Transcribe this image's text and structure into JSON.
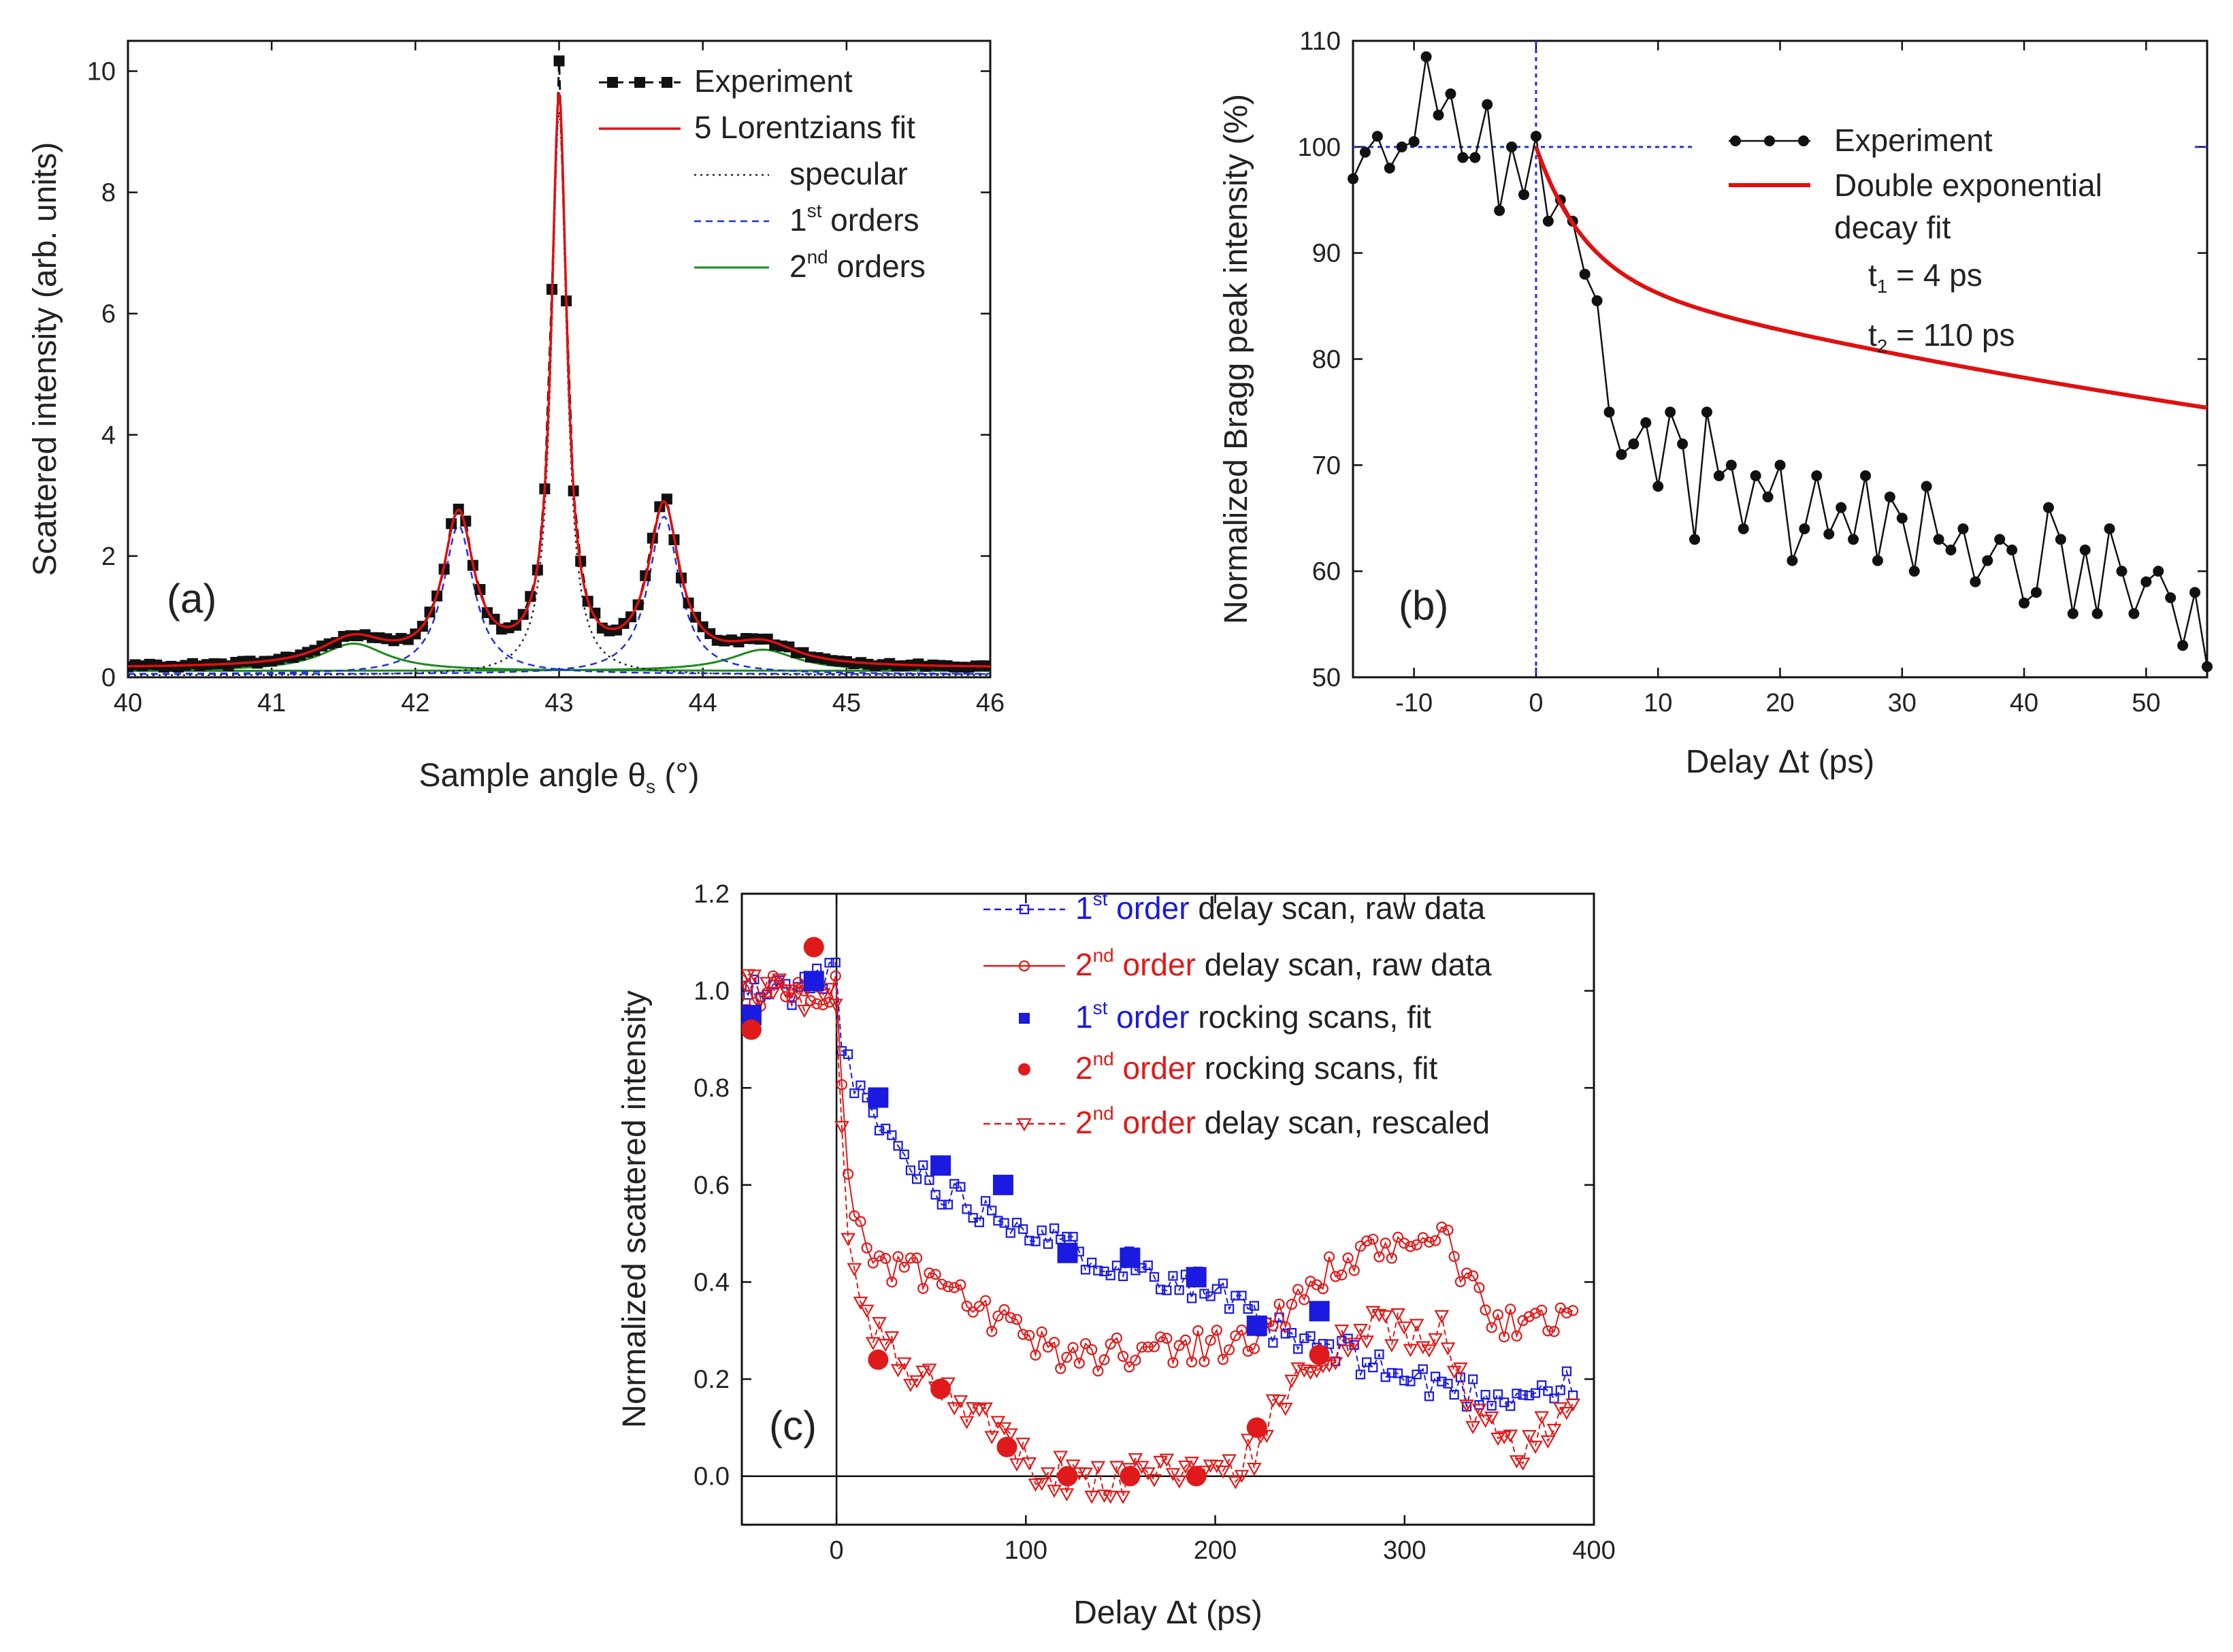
{
  "chart_data": [
    {
      "panel": "(a)",
      "type": "line",
      "xlabel": "Sample angle θ",
      "xlabel_sub": "s",
      "xlabel_unit": " (°)",
      "ylabel": "Scattered intensity (arb. units)",
      "xlim": [
        40,
        46
      ],
      "ylim": [
        0,
        10.5
      ],
      "xticks": [
        40,
        41,
        42,
        43,
        44,
        45,
        46
      ],
      "yticks": [
        0,
        2,
        4,
        6,
        8,
        10
      ],
      "baseline": 0.15,
      "components": {
        "specular": [
          {
            "x0": 43.0,
            "amp": 9.3,
            "width": 0.065
          }
        ],
        "first_orders": [
          {
            "x0": 42.3,
            "amp": 2.45,
            "width": 0.13
          },
          {
            "x0": 43.73,
            "amp": 2.6,
            "width": 0.13
          }
        ],
        "second_orders": [
          {
            "x0": 41.57,
            "amp": 0.45,
            "width": 0.28
          },
          {
            "x0": 44.42,
            "amp": 0.35,
            "width": 0.28
          }
        ]
      },
      "legend": [
        {
          "label": "Experiment",
          "style": "black-squares-dashed"
        },
        {
          "label": "5 Lorentzians fit",
          "style": "red-solid"
        },
        {
          "label": "specular",
          "style": "black-dotted"
        },
        {
          "label": "1",
          "sup": "st",
          "rest": " orders",
          "style": "blue-dashed"
        },
        {
          "label": "2",
          "sup": "nd",
          "rest": " orders",
          "style": "green-solid"
        }
      ]
    },
    {
      "panel": "(b)",
      "type": "line",
      "xlabel": "Delay Δt (ps)",
      "ylabel": "Normalized Bragg peak intensity (%)",
      "xlim": [
        -15,
        55
      ],
      "ylim": [
        50,
        110
      ],
      "xticks": [
        -10,
        0,
        10,
        20,
        30,
        40,
        50
      ],
      "yticks": [
        50,
        60,
        70,
        80,
        90,
        100,
        110
      ],
      "reference_lines": {
        "x": 0,
        "y": 100
      },
      "fit": {
        "type": "double-exponential",
        "t1_ps": 4,
        "t2_ps": 110,
        "a1": 12,
        "a2": 32
      },
      "experiment": {
        "x": [
          -15,
          -14,
          -13,
          -12,
          -11,
          -10,
          -9,
          -8,
          -7,
          -6,
          -5,
          -4,
          -3,
          -2,
          -1,
          0,
          1,
          2,
          3,
          4,
          5,
          6,
          7,
          8,
          9,
          10,
          11,
          12,
          13,
          14,
          15,
          16,
          17,
          18,
          19,
          20,
          21,
          22,
          23,
          24,
          25,
          26,
          27,
          28,
          29,
          30,
          31,
          32,
          33,
          34,
          35,
          36,
          37,
          38,
          39,
          40,
          41,
          42,
          43,
          44,
          45,
          46,
          47,
          48,
          49,
          50,
          51,
          52,
          53,
          54,
          55
        ],
        "y": [
          97,
          99.5,
          101,
          98,
          100,
          100.5,
          108.5,
          103,
          105,
          99,
          99,
          104,
          94,
          100,
          95.5,
          101,
          93,
          95,
          93,
          88,
          85.5,
          75,
          71,
          72,
          74,
          68,
          75,
          72,
          63,
          75,
          69,
          70,
          64,
          69,
          67,
          70,
          61,
          64,
          69,
          63.5,
          66,
          63,
          69,
          61,
          67,
          65,
          60,
          68,
          63,
          62,
          64,
          59,
          61,
          63,
          62,
          57,
          58,
          66,
          63,
          56,
          62,
          56,
          64,
          60,
          56,
          59,
          60,
          57.5,
          53,
          58,
          51
        ]
      },
      "legend": [
        {
          "label": "Experiment",
          "style": "black-diamonds-line"
        },
        {
          "label": "Double exponential",
          "style": "red-solid"
        },
        {
          "label": "decay fit"
        }
      ],
      "annotations": [
        {
          "t": "t",
          "sub": "1",
          "rest": " = 4 ps"
        },
        {
          "t": "t",
          "sub": "2",
          "rest": " = 110 ps"
        }
      ]
    },
    {
      "panel": "(c)",
      "type": "scatter",
      "xlabel": "Delay Δt (ps)",
      "ylabel": "Normalized scattered intensity",
      "xlim": [
        -50,
        400
      ],
      "ylim": [
        -0.1,
        1.2
      ],
      "xticks": [
        0,
        100,
        200,
        300,
        400
      ],
      "yticks": [
        0.0,
        0.2,
        0.4,
        0.6,
        0.8,
        1.0,
        1.2
      ],
      "reference_lines": {
        "x": 0,
        "y": 0
      },
      "series": [
        {
          "name": "1st order delay scan, raw data",
          "color": "#1a1ae0",
          "marker": "open-square",
          "keypoints_x": [
            -50,
            -20,
            0,
            3,
            8,
            20,
            40,
            60,
            80,
            100,
            120,
            140,
            160,
            180,
            200,
            220,
            240,
            260,
            280,
            300,
            320,
            340,
            360,
            380,
            390
          ],
          "keypoints_y": [
            1.0,
            1.0,
            1.05,
            0.9,
            0.8,
            0.74,
            0.64,
            0.58,
            0.55,
            0.52,
            0.47,
            0.45,
            0.43,
            0.41,
            0.38,
            0.32,
            0.28,
            0.26,
            0.24,
            0.2,
            0.19,
            0.17,
            0.17,
            0.18,
            0.19
          ]
        },
        {
          "name": "2nd order delay scan, raw data",
          "color": "#e01a1a",
          "marker": "open-circle",
          "keypoints_x": [
            -50,
            -20,
            0,
            3,
            8,
            20,
            40,
            60,
            80,
            100,
            120,
            140,
            160,
            180,
            200,
            220,
            240,
            260,
            280,
            300,
            320,
            340,
            360,
            380,
            390
          ],
          "keypoints_y": [
            1.0,
            1.0,
            1.0,
            0.8,
            0.55,
            0.44,
            0.42,
            0.38,
            0.33,
            0.28,
            0.25,
            0.25,
            0.26,
            0.27,
            0.27,
            0.28,
            0.35,
            0.42,
            0.45,
            0.48,
            0.5,
            0.35,
            0.3,
            0.33,
            0.36
          ]
        },
        {
          "name": "2nd order delay scan, rescaled",
          "color": "#e01a1a",
          "marker": "open-triangle-down",
          "keypoints_x": [
            -50,
            -20,
            0,
            3,
            8,
            20,
            40,
            60,
            80,
            100,
            120,
            140,
            160,
            180,
            200,
            220,
            240,
            260,
            280,
            300,
            320,
            340,
            360,
            380,
            390
          ],
          "keypoints_y": [
            1.0,
            1.0,
            1.0,
            0.7,
            0.4,
            0.3,
            0.22,
            0.17,
            0.1,
            0.03,
            0.0,
            -0.01,
            0.0,
            0.0,
            0.0,
            0.05,
            0.18,
            0.25,
            0.3,
            0.3,
            0.3,
            0.1,
            0.05,
            0.12,
            0.15
          ]
        },
        {
          "name": "1st order rocking scans, fit",
          "color": "#1a1ae0",
          "marker": "filled-square",
          "x": [
            -45,
            -12,
            22,
            55,
            88,
            122,
            155,
            190,
            222,
            255
          ],
          "y": [
            0.95,
            1.02,
            0.78,
            0.64,
            0.6,
            0.46,
            0.45,
            0.41,
            0.31,
            0.34
          ]
        },
        {
          "name": "2nd order rocking scans, fit",
          "color": "#e01a1a",
          "marker": "filled-circle",
          "x": [
            -45,
            -12,
            22,
            55,
            90,
            122,
            155,
            190,
            222,
            255
          ],
          "y": [
            0.92,
            1.09,
            0.24,
            0.18,
            0.06,
            0.0,
            0.0,
            0.0,
            0.1,
            0.25
          ]
        }
      ],
      "legend": [
        {
          "num": "1",
          "sup": "st",
          "word": " order",
          "rest": " delay scan, raw data",
          "style": "blue-open-square-dashed",
          "color": "#1a1ae0"
        },
        {
          "num": "2",
          "sup": "nd",
          "word": " order",
          "rest": " delay scan, raw data",
          "style": "red-open-circle-line",
          "color": "#e01a1a"
        },
        {
          "num": "1",
          "sup": "st",
          "word": " order",
          "rest": " rocking scans, fit",
          "style": "blue-filled-square",
          "color": "#1a1ae0"
        },
        {
          "num": "2",
          "sup": "nd",
          "word": " order",
          "rest": " rocking scans, fit",
          "style": "red-filled-circle",
          "color": "#e01a1a"
        },
        {
          "num": "2",
          "sup": "nd",
          "word": " order",
          "rest": " delay scan, rescaled",
          "style": "red-open-triangle-dashed",
          "color": "#e01a1a"
        }
      ]
    }
  ]
}
